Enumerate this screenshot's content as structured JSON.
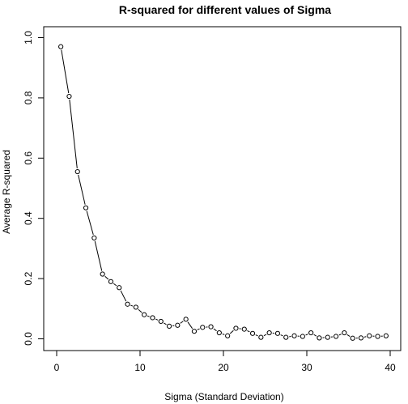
{
  "chart_data": {
    "type": "line",
    "title": "R-squared for different values of Sigma",
    "xlabel": "Sigma (Standard Deviation)",
    "ylabel": "Average R-squared",
    "xlim": [
      0,
      40
    ],
    "ylim": [
      0,
      1
    ],
    "x_ticks": [
      "0",
      "10",
      "20",
      "30",
      "40"
    ],
    "y_ticks": [
      "0.0",
      "0.2",
      "0.4",
      "0.6",
      "0.8",
      "1.0"
    ],
    "grid": false,
    "marker": "open-circle",
    "series": [
      {
        "x": [
          0.5,
          1.5,
          2.5,
          3.5,
          4.5,
          5.5,
          6.5,
          7.5,
          8.5,
          9.5,
          10.5,
          11.5,
          12.5,
          13.5,
          14.5,
          15.5,
          16.5,
          17.5,
          18.5,
          19.5,
          20.5,
          21.5,
          22.5,
          23.5,
          24.5,
          25.5,
          26.5,
          27.5,
          28.5,
          29.5,
          30.5,
          31.5,
          32.5,
          33.5,
          34.5,
          35.5,
          36.5,
          37.5,
          38.5,
          39.5
        ],
        "values": [
          0.97,
          0.805,
          0.555,
          0.435,
          0.335,
          0.215,
          0.19,
          0.17,
          0.115,
          0.105,
          0.08,
          0.07,
          0.058,
          0.042,
          0.045,
          0.065,
          0.025,
          0.038,
          0.04,
          0.02,
          0.01,
          0.035,
          0.032,
          0.018,
          0.005,
          0.02,
          0.018,
          0.005,
          0.01,
          0.008,
          0.02,
          0.003,
          0.005,
          0.008,
          0.02,
          0.002,
          0.003,
          0.01,
          0.008,
          0.01
        ]
      }
    ]
  }
}
